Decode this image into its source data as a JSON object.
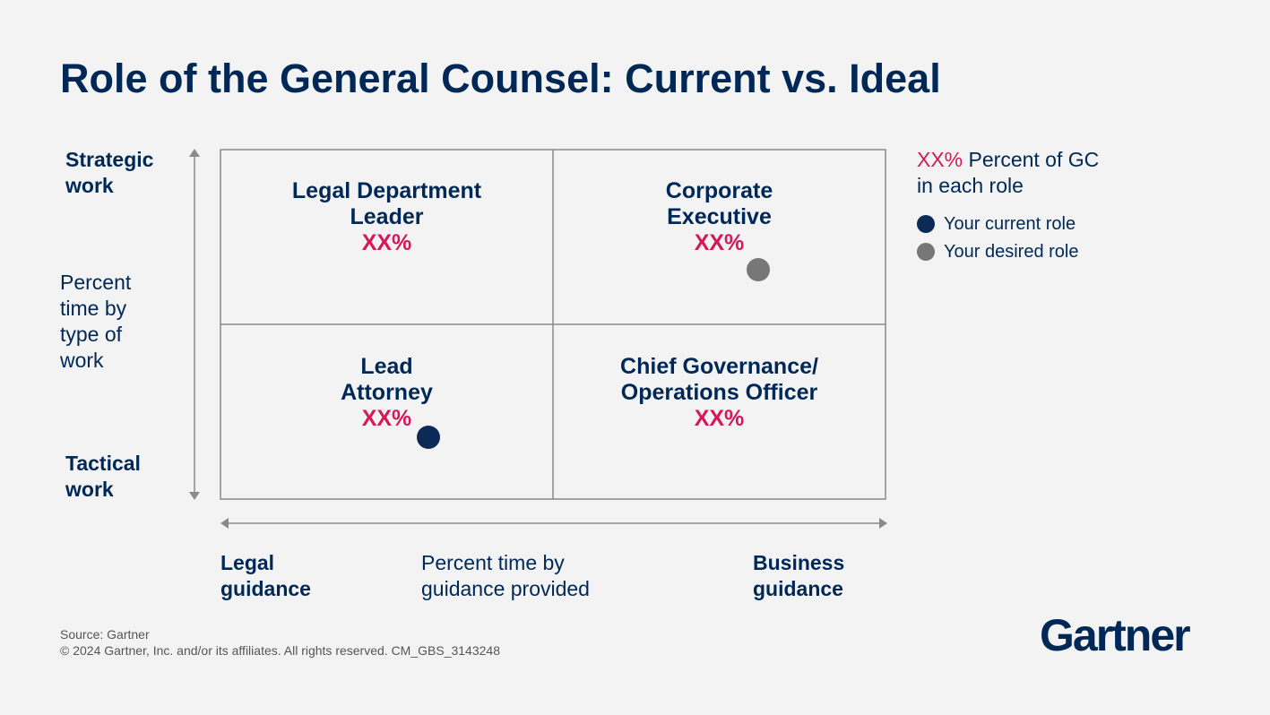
{
  "header": {
    "title": "Role of the General Counsel: Current vs. Ideal"
  },
  "y_axis": {
    "top": [
      "Strategic",
      "work"
    ],
    "label": [
      "Percent",
      "time by",
      "type of",
      "work"
    ],
    "bottom": [
      "Tactical",
      "work"
    ]
  },
  "x_axis": {
    "left": [
      "Legal",
      "guidance"
    ],
    "label": [
      "Percent time by",
      "guidance provided"
    ],
    "right": [
      "Business",
      "guidance"
    ]
  },
  "quadrants": [
    {
      "title": [
        "Legal Department",
        "Leader"
      ],
      "percent": "XX%"
    },
    {
      "title": [
        "Corporate",
        "Executive"
      ],
      "percent": "XX%"
    },
    {
      "title": [
        "Lead",
        "Attorney"
      ],
      "percent": "XX%"
    },
    {
      "title": [
        "Chief Governance/",
        "Operations Officer"
      ],
      "percent": "XX%"
    }
  ],
  "legend": {
    "key": "XX%",
    "label": [
      "Percent of GC",
      "in each role"
    ],
    "items": [
      "Your current role",
      "Your desired role"
    ]
  },
  "footer": {
    "source": "Source: Gartner",
    "copyright": "© 2024 Gartner, Inc. and/or its affiliates. All rights reserved. CM_GBS_3143248",
    "logo": "Gartner"
  }
}
